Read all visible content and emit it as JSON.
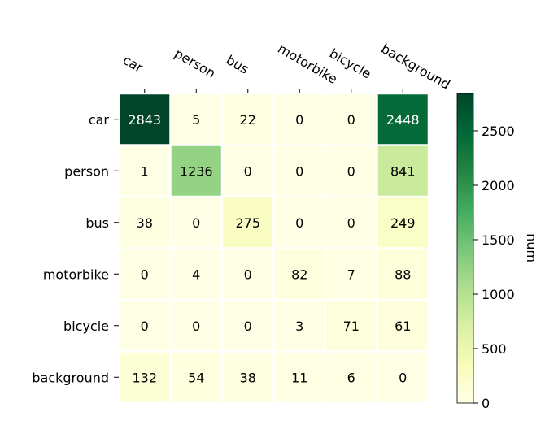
{
  "chart_data": {
    "type": "heatmap",
    "x_categories": [
      "car",
      "person",
      "bus",
      "motorbike",
      "bicycle",
      "background"
    ],
    "y_categories": [
      "car",
      "person",
      "bus",
      "motorbike",
      "bicycle",
      "background"
    ],
    "values": [
      [
        2843,
        5,
        22,
        0,
        0,
        2448
      ],
      [
        1,
        1236,
        0,
        0,
        0,
        841
      ],
      [
        38,
        0,
        275,
        0,
        0,
        249
      ],
      [
        0,
        4,
        0,
        82,
        7,
        88
      ],
      [
        0,
        0,
        0,
        3,
        71,
        61
      ],
      [
        132,
        54,
        38,
        11,
        6,
        0
      ]
    ],
    "colorbar": {
      "label": "num",
      "min": 0,
      "max": 2843,
      "ticks": [
        0,
        500,
        1000,
        1500,
        2000,
        2500
      ]
    },
    "colormap": "Greens",
    "colors": {
      "low": "#ffffe5",
      "high": "#004529"
    }
  }
}
